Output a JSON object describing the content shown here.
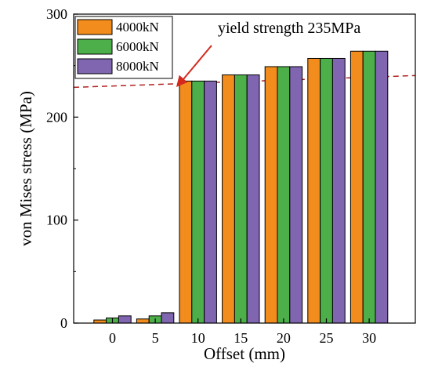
{
  "chart_data": {
    "type": "bar",
    "title": "",
    "xlabel": "Offset (mm)",
    "ylabel": "von Mises stress (MPa)",
    "ylim": [
      0,
      300
    ],
    "yticks": [
      0,
      100,
      200,
      300
    ],
    "categories": [
      "0",
      "5",
      "10",
      "15",
      "20",
      "25",
      "30"
    ],
    "series": [
      {
        "name": "4000kN",
        "color": "#f28c1c",
        "values": [
          3,
          4,
          235,
          241,
          249,
          257,
          264
        ]
      },
      {
        "name": "6000kN",
        "color": "#4daf4a",
        "values": [
          5,
          7,
          235,
          241,
          249,
          257,
          264
        ]
      },
      {
        "name": "8000kN",
        "color": "#8065b0",
        "values": [
          7,
          10,
          235,
          241,
          249,
          257,
          264
        ]
      }
    ],
    "legend_position": "top-left",
    "grid": false,
    "reference_line": {
      "label": "yield strength 235MPa",
      "value": 235,
      "style": "dashed",
      "color": "#b22222"
    },
    "annotation_arrow_color": "#d42a1e"
  }
}
